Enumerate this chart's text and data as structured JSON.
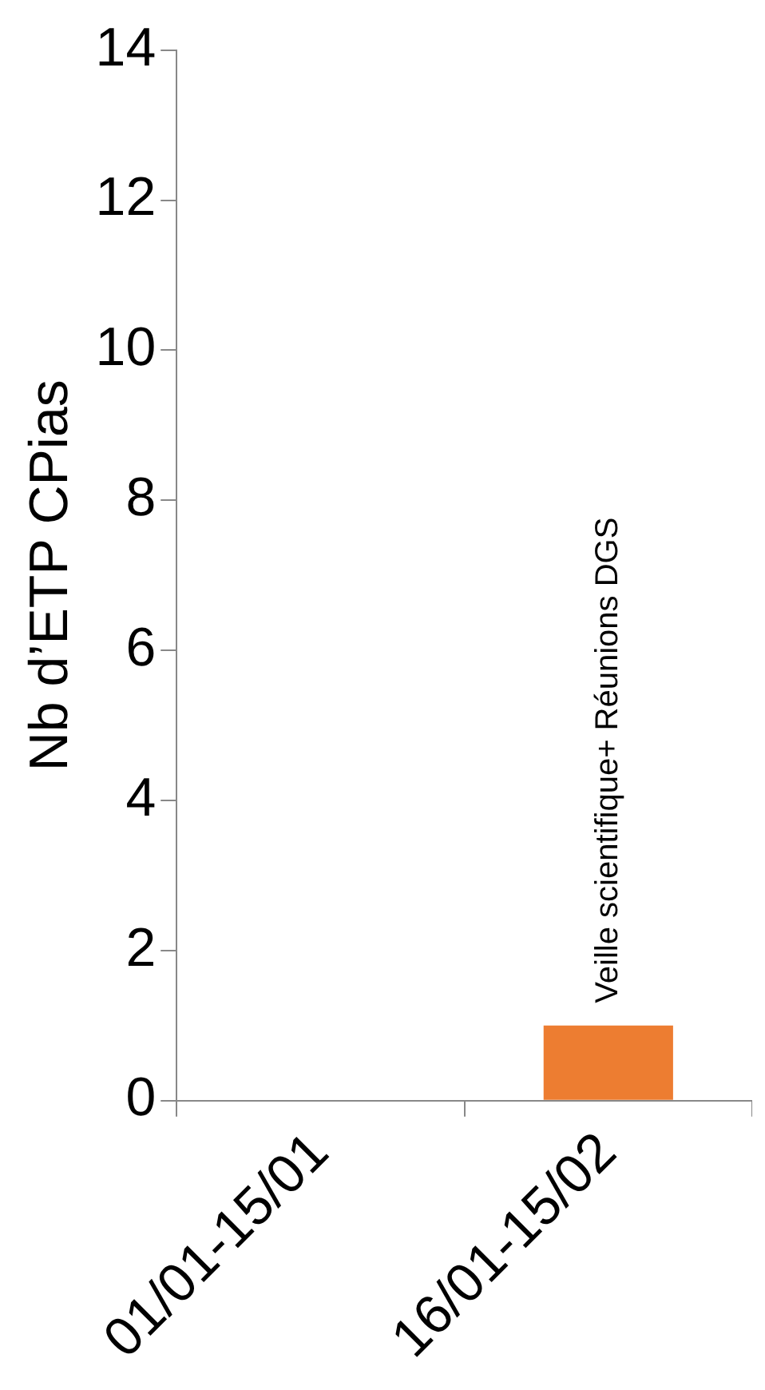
{
  "chart_data": {
    "type": "bar",
    "ylabel": "Nb d’ETP CPias",
    "categories": [
      "01/01-15/01",
      "16/01-15/02"
    ],
    "series": [
      {
        "color": "#ed7d31",
        "values": [
          null,
          1
        ]
      }
    ],
    "ylim": [
      0,
      14
    ],
    "yticks": [
      0,
      2,
      4,
      6,
      8,
      10,
      12,
      14
    ],
    "grid": false,
    "legend": false,
    "annotations": [
      {
        "text": "Veille scientifique+ Réunions DGS",
        "x": "16/01-15/02",
        "y": 1
      }
    ]
  }
}
